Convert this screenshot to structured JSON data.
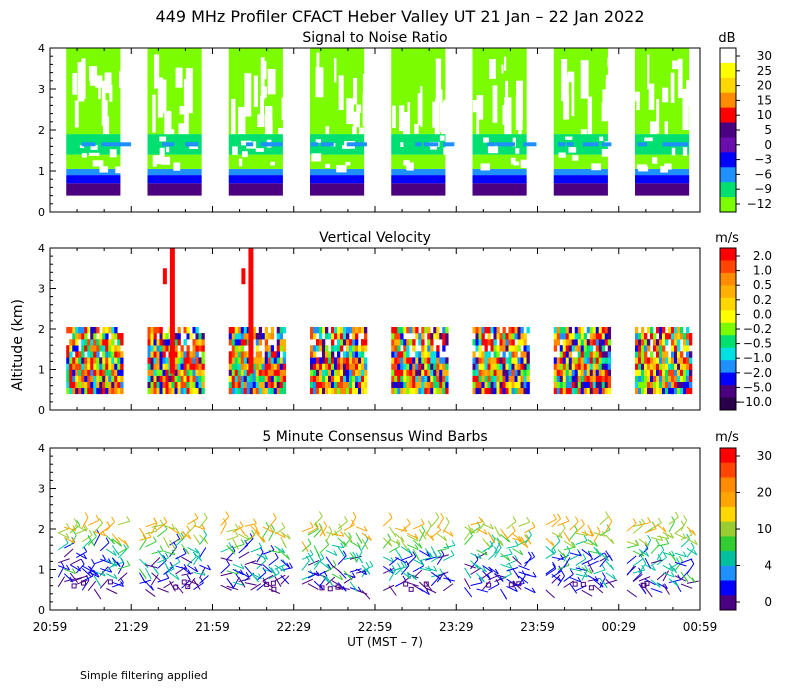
{
  "title": "449 MHz Profiler CFACT Heber Valley UT 21 Jan – 22 Jan 2022",
  "ylabel": "Altitude (km)",
  "xlabel": "UT  (MST – 7)",
  "footnote": "Simple filtering applied",
  "x_ticks": [
    "20:59",
    "21:29",
    "21:59",
    "22:29",
    "22:59",
    "23:29",
    "23:59",
    "00:29",
    "00:59"
  ],
  "chart_data": [
    {
      "type": "heatmap",
      "title": "Signal to Noise Ratio",
      "ylabel": "Altitude (km)",
      "ylim": [
        0,
        4
      ],
      "y_ticks": [
        "0",
        "1",
        "2",
        "3",
        "4"
      ],
      "colorbar": {
        "unit": "dB",
        "labels": [
          "30",
          "25",
          "20",
          "15",
          "10",
          "5",
          "0",
          "−3",
          "−6",
          "−9",
          "−12"
        ],
        "colors": [
          "#ffffff",
          "#ffff00",
          "#ffd700",
          "#ff8c00",
          "#ff0000",
          "#4b0082",
          "#6a0dad",
          "#0000ff",
          "#1e90ff",
          "#00e070",
          "#7cfc00"
        ]
      },
      "data_blocks": [
        {
          "start": "21:05",
          "end": "21:25"
        },
        {
          "start": "21:35",
          "end": "21:55"
        },
        {
          "start": "22:05",
          "end": "22:25"
        },
        {
          "start": "22:35",
          "end": "22:55"
        },
        {
          "start": "23:05",
          "end": "23:25"
        },
        {
          "start": "23:35",
          "end": "23:55"
        },
        {
          "start": "00:05",
          "end": "00:25"
        },
        {
          "start": "00:35",
          "end": "00:55"
        }
      ],
      "levels_km": [
        {
          "from": 0.4,
          "to": 0.7,
          "snr_db": 5
        },
        {
          "from": 0.7,
          "to": 0.9,
          "snr_db": -3
        },
        {
          "from": 0.9,
          "to": 1.05,
          "snr_db": -6
        },
        {
          "from": 1.05,
          "to": 1.4,
          "snr_db": -12
        },
        {
          "from": 1.4,
          "to": 1.9,
          "snr_db": -9
        },
        {
          "from": 1.9,
          "to": 4.0,
          "snr_db": -12
        }
      ]
    },
    {
      "type": "heatmap",
      "title": "Vertical Velocity",
      "ylabel": "Altitude (km)",
      "ylim": [
        0,
        4
      ],
      "y_ticks": [
        "0",
        "1",
        "2",
        "3",
        "4"
      ],
      "colorbar": {
        "unit": "m/s",
        "labels": [
          "2.0",
          "1.0",
          "0.5",
          "0.2",
          "0.0",
          "−0.2",
          "−0.5",
          "−1.0",
          "−2.0",
          "−5.0",
          "−10.0"
        ],
        "colors": [
          "#ff0000",
          "#ff4500",
          "#ff8c00",
          "#ffb000",
          "#ffd700",
          "#ffff00",
          "#7cfc00",
          "#00e070",
          "#00e0e0",
          "#1e90ff",
          "#0000ff",
          "#4b0082",
          "#2a004a"
        ]
      },
      "data_layer_km": [
        0.4,
        1.9
      ],
      "updraft_columns": [
        {
          "time": "21:44",
          "top_km": 4.0
        },
        {
          "time": "22:13",
          "top_km": 4.0
        }
      ]
    },
    {
      "type": "scatter",
      "title": "5 Minute Consensus Wind Barbs",
      "ylabel": "Altitude (km)",
      "ylim": [
        0,
        4
      ],
      "y_ticks": [
        "0",
        "1",
        "2",
        "3",
        "4"
      ],
      "colorbar": {
        "unit": "m/s",
        "labels": [
          "30",
          "20",
          "10",
          "4",
          "0"
        ],
        "colors": [
          "#ff0000",
          "#ff4500",
          "#ff8c00",
          "#ffa500",
          "#ffd700",
          "#9acd32",
          "#32cd32",
          "#00c0a0",
          "#1e90ff",
          "#0000ff",
          "#4b0082"
        ]
      },
      "barb_layers": [
        {
          "alt_km": 0.6,
          "speed_ms": 2
        },
        {
          "alt_km": 0.8,
          "speed_ms": 4
        },
        {
          "alt_km": 1.0,
          "speed_ms": 7
        },
        {
          "alt_km": 1.2,
          "speed_ms": 5
        },
        {
          "alt_km": 1.5,
          "speed_ms": 9
        },
        {
          "alt_km": 1.8,
          "speed_ms": 15
        },
        {
          "alt_km": 2.0,
          "speed_ms": 18
        }
      ]
    }
  ]
}
